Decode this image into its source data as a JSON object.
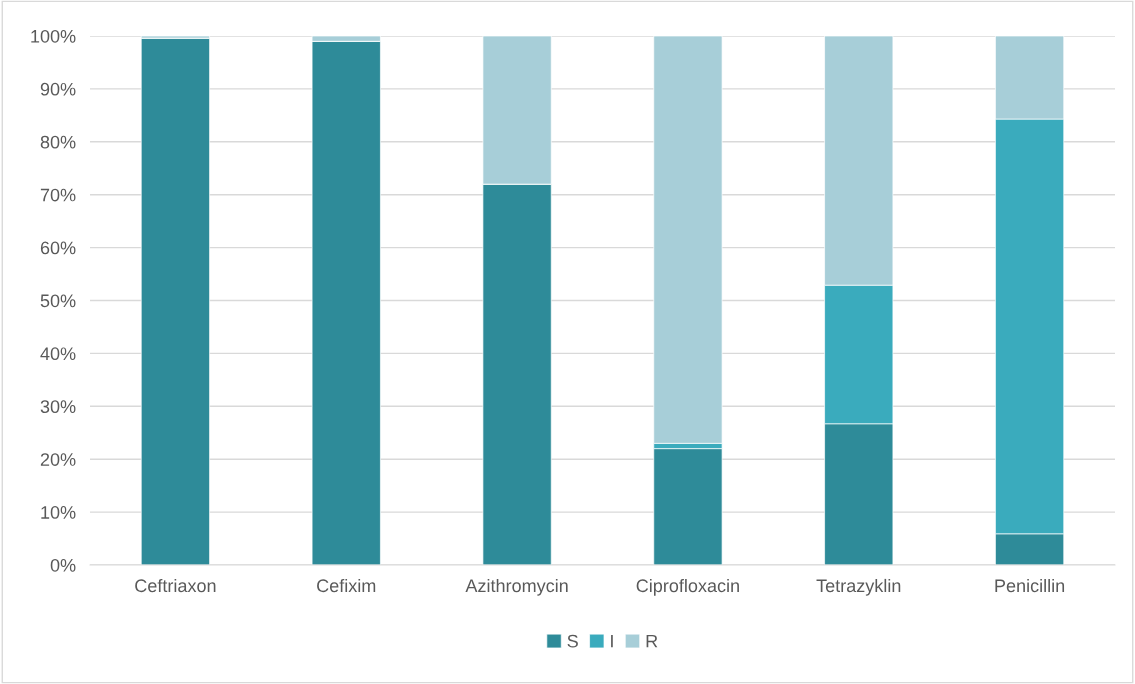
{
  "chart_data": {
    "type": "bar",
    "stacked": true,
    "categories": [
      "Ceftriaxon",
      "Cefixim",
      "Azithromycin",
      "Ciprofloxacin",
      "Tetrazyklin",
      "Penicillin"
    ],
    "series": [
      {
        "name": "S",
        "color": "#2e8b99",
        "values": [
          99.6,
          99.0,
          72,
          22,
          26.7,
          5.9
        ]
      },
      {
        "name": "I",
        "color": "#3aabbd",
        "values": [
          0,
          0,
          0,
          1,
          26.2,
          78.4
        ]
      },
      {
        "name": "R",
        "color": "#a7ced8",
        "values": [
          0.4,
          1.0,
          28,
          77,
          47.1,
          15.7
        ]
      }
    ],
    "ylim": [
      0,
      100
    ],
    "yticks": [
      {
        "value": 0,
        "label": "0%"
      },
      {
        "value": 10,
        "label": "10%"
      },
      {
        "value": 20,
        "label": "20%"
      },
      {
        "value": 30,
        "label": "30%"
      },
      {
        "value": 40,
        "label": "40%"
      },
      {
        "value": 50,
        "label": "50%"
      },
      {
        "value": 60,
        "label": "60%"
      },
      {
        "value": 70,
        "label": "70%"
      },
      {
        "value": 80,
        "label": "80%"
      },
      {
        "value": 90,
        "label": "90%"
      },
      {
        "value": 100,
        "label": "100%"
      }
    ],
    "grid": "y",
    "legend": "bottom"
  }
}
